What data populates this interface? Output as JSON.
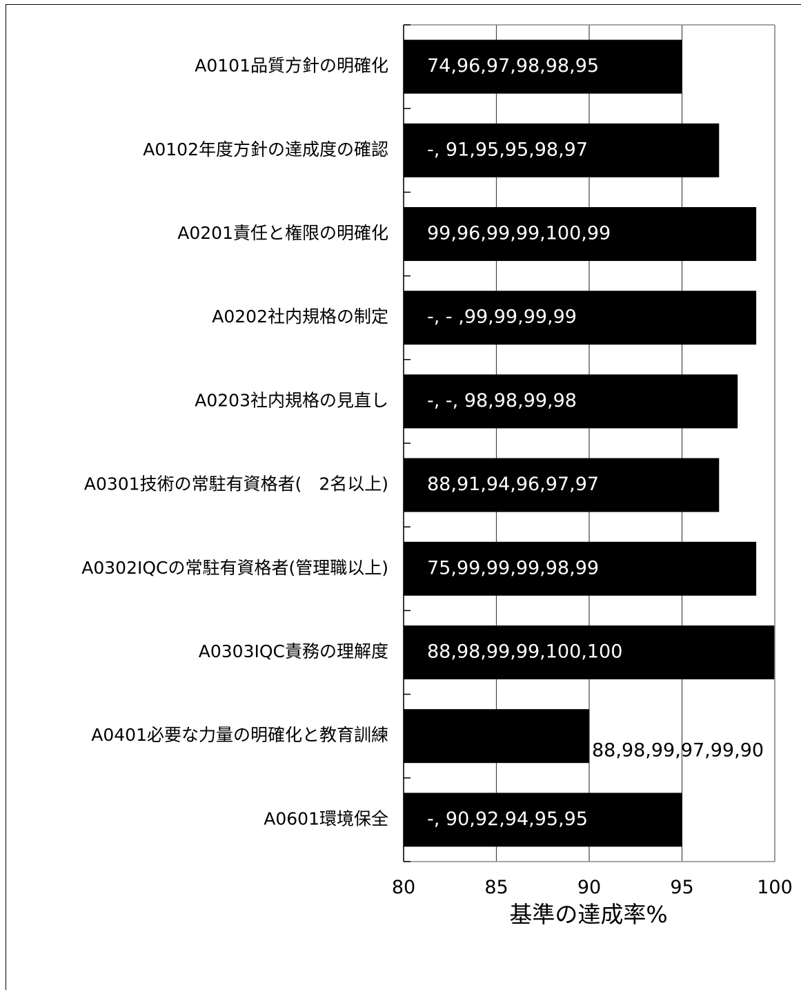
{
  "chart_data": {
    "type": "bar",
    "orientation": "horizontal",
    "categories": [
      "A0101品質方針の明確化",
      "A0102年度方針の達成度の確認",
      "A0201責任と権限の明確化",
      "A0202社内規格の制定",
      "A0203社内規格の見直し",
      "A0301技術の常駐有資格者(　2名以上)",
      "A0302IQCの常駐有資格者(管理職以上)",
      "A0303IQC責務の理解度",
      "A0401必要な力量の明確化と教育訓練",
      "A0601環境保全"
    ],
    "values": [
      95,
      97,
      99,
      99,
      98,
      97,
      99,
      100,
      90,
      95
    ],
    "data_labels": [
      "74,96,97,98,98,95",
      "-, 91,95,95,98,97",
      "99,96,99,99,100,99",
      "-, - ,99,99,99,99",
      "-, -, 98,98,99,98",
      "88,91,94,96,97,97",
      "75,99,99,99,98,99",
      "88,98,99,99,100,100",
      "88,98,99,97,99,90",
      "-, 90,92,94,95,95"
    ],
    "x_ticks": [
      "80",
      "85",
      "90",
      "95",
      "100"
    ],
    "xlim": [
      80,
      100
    ],
    "xlabel": "基準の達成率%",
    "ylabel": "",
    "title": "",
    "grid": "vertical",
    "bar_color": "#000000"
  }
}
